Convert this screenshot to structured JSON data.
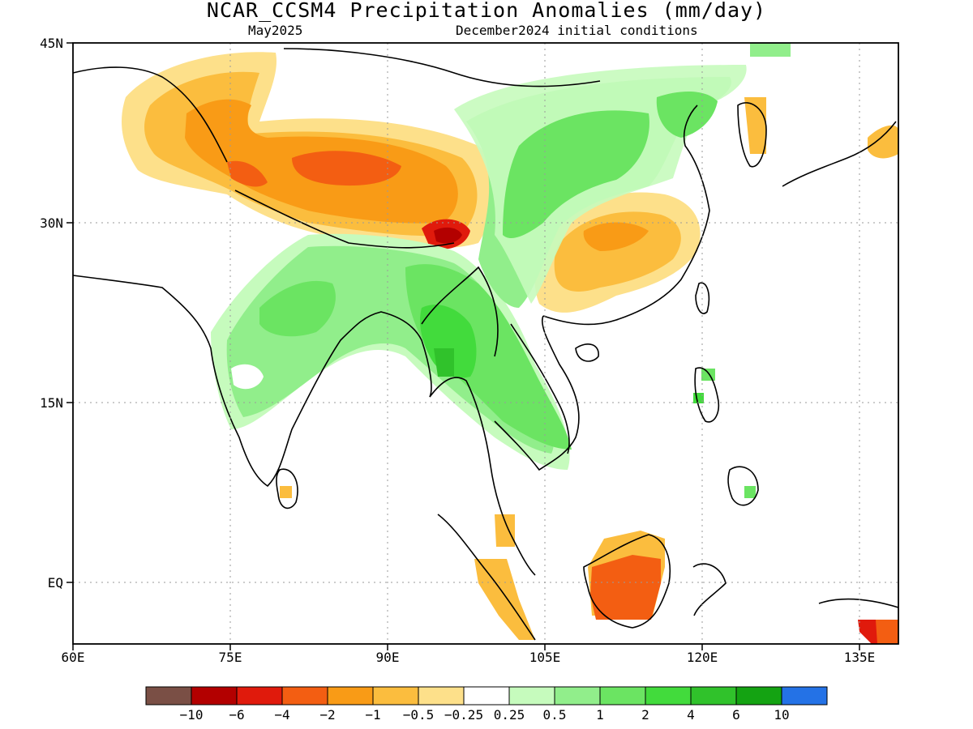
{
  "title": "NCAR_CCSM4 Precipitation Anomalies (mm/day)",
  "valid_month": "May2025",
  "initial_conditions": "December2024 initial conditions",
  "lat_labels": [
    "45N",
    "30N",
    "15N",
    "EQ"
  ],
  "lon_labels": [
    "60E",
    "75E",
    "90E",
    "105E",
    "120E",
    "135E"
  ],
  "colorbar": {
    "labels": [
      "−10",
      "−6",
      "−4",
      "−2",
      "−1",
      "−0.5",
      "−0.25",
      "0.25",
      "0.5",
      "1",
      "2",
      "4",
      "6",
      "10"
    ],
    "colors": [
      "#7a4f45",
      "#b30000",
      "#e01a0c",
      "#f35e12",
      "#f99b16",
      "#fbbd3e",
      "#fde08a",
      "#ffffff",
      "#c6fbbd",
      "#91ee8b",
      "#6be462",
      "#42db3c",
      "#30c22b",
      "#14a312",
      "#2472e6"
    ]
  },
  "colors": {
    "orange": "#f99b16",
    "light_orange": "#fbbd3e",
    "pale_yellow": "#fde08a",
    "red": "#b30000",
    "green": "#6be462",
    "dark_green": "#30c22b",
    "light_green": "#91ee8b"
  }
}
